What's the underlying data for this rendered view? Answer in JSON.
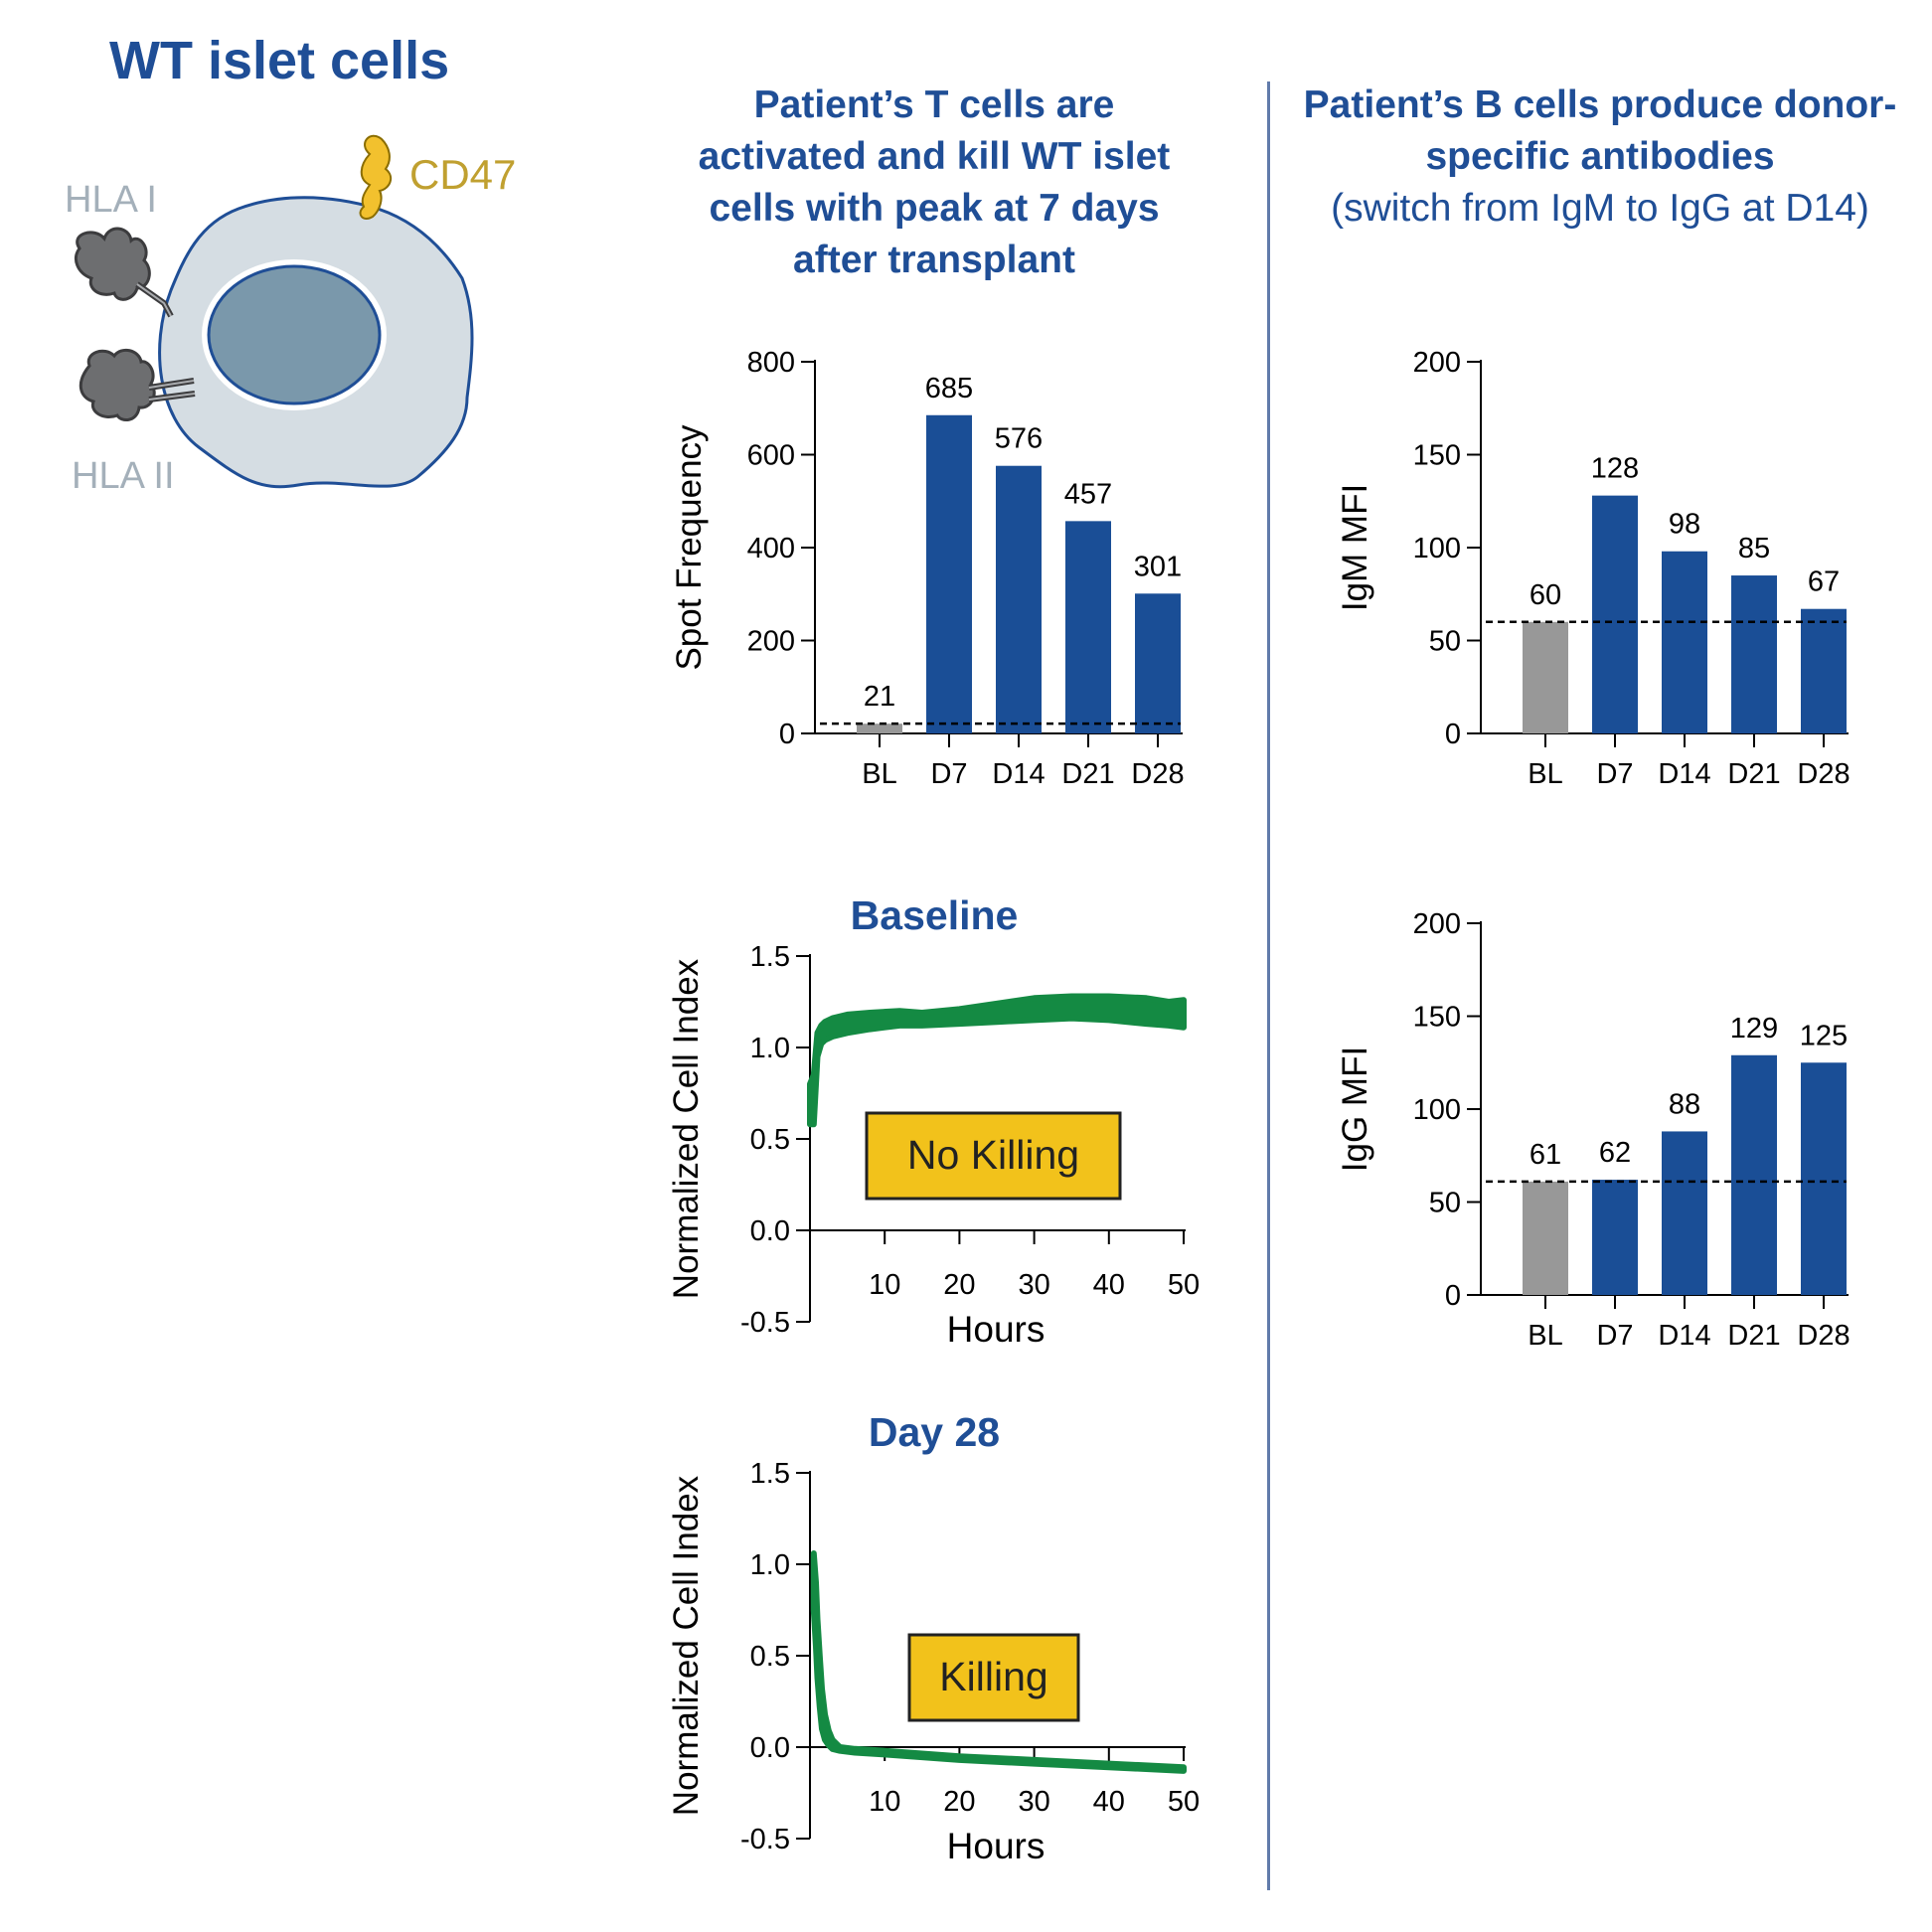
{
  "figure": {
    "title": "WT islet cells",
    "left_heading": "Patient’s T cells are activated and kill WT islet cells with peak at 7 days after transplant",
    "right_heading_bold": "Patient’s B cells produce donor-specific antibodies",
    "right_heading_normal": "(switch from IgM to IgG at D14)"
  },
  "cell_diagram": {
    "labels": {
      "hla1": "HLA I",
      "hla2": "HLA II",
      "cd47": "CD47"
    },
    "colors": {
      "cell": "#d5dde3",
      "nucleus": "#7a98ab",
      "outline": "#1f4e96",
      "hla": "#6d6e70",
      "cd47": "#f2c12e"
    }
  },
  "colors": {
    "blue_bar": "#1a4e96",
    "gray_bar": "#989898",
    "green_line": "#148a43",
    "badge": "#f2c21b"
  },
  "chart_data": [
    {
      "id": "elispot",
      "type": "bar",
      "categories": [
        "BL",
        "D7",
        "D14",
        "D21",
        "D28"
      ],
      "values": [
        21,
        685,
        576,
        457,
        301
      ],
      "value_labels": [
        "21",
        "685",
        "576",
        "457",
        "301"
      ],
      "bar_colors": [
        "gray",
        "blue",
        "blue",
        "blue",
        "blue"
      ],
      "ylabel": "Spot Frequency",
      "ylim": [
        0,
        800
      ],
      "yticks": [
        0,
        200,
        400,
        600,
        800
      ],
      "ytick_labels": [
        "0",
        "200",
        "400",
        "600",
        "800"
      ],
      "reference_line": 21
    },
    {
      "id": "igm",
      "type": "bar",
      "categories": [
        "BL",
        "D7",
        "D14",
        "D21",
        "D28"
      ],
      "values": [
        60,
        128,
        98,
        85,
        67
      ],
      "value_labels": [
        "60",
        "128",
        "98",
        "85",
        "67"
      ],
      "bar_colors": [
        "gray",
        "blue",
        "blue",
        "blue",
        "blue"
      ],
      "ylabel": "IgM MFI",
      "ylim": [
        0,
        200
      ],
      "yticks": [
        0,
        50,
        100,
        150,
        200
      ],
      "ytick_labels": [
        "0",
        "50",
        "100",
        "150",
        "200"
      ],
      "reference_line": 60
    },
    {
      "id": "igg",
      "type": "bar",
      "categories": [
        "BL",
        "D7",
        "D14",
        "D21",
        "D28"
      ],
      "values": [
        61,
        62,
        88,
        129,
        125
      ],
      "value_labels": [
        "61",
        "62",
        "88",
        "129",
        "125"
      ],
      "bar_colors": [
        "gray",
        "blue",
        "blue",
        "blue",
        "blue"
      ],
      "ylabel": "IgG MFI",
      "ylim": [
        0,
        200
      ],
      "yticks": [
        0,
        50,
        100,
        150,
        200
      ],
      "ytick_labels": [
        "0",
        "50",
        "100",
        "150",
        "200"
      ],
      "reference_line": 61
    },
    {
      "id": "baseline",
      "type": "line",
      "title": "Baseline",
      "annotation": "No Killing",
      "xlabel": "Hours",
      "ylabel": "Normalized Cell Index",
      "xlim": [
        0,
        50
      ],
      "ylim": [
        -0.5,
        1.5
      ],
      "xticks": [
        10,
        20,
        30,
        40,
        50
      ],
      "xtick_labels": [
        "10",
        "20",
        "30",
        "40",
        "50"
      ],
      "yticks": [
        -0.5,
        0.0,
        0.5,
        1.0,
        1.5
      ],
      "ytick_labels": [
        "-0.5",
        "0.0",
        "0.5",
        "1.0",
        "1.5"
      ],
      "series": [
        {
          "name": "Baseline",
          "x": [
            0,
            0.5,
            1,
            1.5,
            2,
            3,
            5,
            8,
            12,
            15,
            20,
            25,
            30,
            35,
            40,
            45,
            48,
            50
          ],
          "lo": [
            0.58,
            0.58,
            0.95,
            1.02,
            1.04,
            1.06,
            1.08,
            1.1,
            1.12,
            1.12,
            1.13,
            1.14,
            1.15,
            1.16,
            1.15,
            1.13,
            1.12,
            1.11
          ],
          "hi": [
            0.8,
            0.85,
            1.08,
            1.12,
            1.14,
            1.16,
            1.18,
            1.19,
            1.2,
            1.19,
            1.21,
            1.24,
            1.27,
            1.28,
            1.28,
            1.27,
            1.25,
            1.26
          ]
        }
      ]
    },
    {
      "id": "day28",
      "type": "line",
      "title": "Day 28",
      "annotation": "Killing",
      "xlabel": "Hours",
      "ylabel": "Normalized Cell Index",
      "xlim": [
        0,
        50
      ],
      "ylim": [
        -0.5,
        1.5
      ],
      "xticks": [
        10,
        20,
        30,
        40,
        50
      ],
      "xtick_labels": [
        "10",
        "20",
        "30",
        "40",
        "50"
      ],
      "yticks": [
        -0.5,
        0.0,
        0.5,
        1.0,
        1.5
      ],
      "ytick_labels": [
        "-0.5",
        "0.0",
        "0.5",
        "1.0",
        "1.5"
      ],
      "series": [
        {
          "name": "Day 28",
          "x": [
            0.5,
            0.8,
            1.0,
            1.3,
            1.6,
            2.0,
            2.5,
            3.0,
            4.0,
            6.0,
            10,
            20,
            30,
            40,
            50
          ],
          "lo": [
            0.75,
            0.55,
            0.38,
            0.22,
            0.1,
            0.04,
            0.01,
            -0.01,
            -0.02,
            -0.03,
            -0.04,
            -0.07,
            -0.09,
            -0.11,
            -0.13
          ],
          "hi": [
            1.06,
            0.9,
            0.7,
            0.5,
            0.32,
            0.18,
            0.09,
            0.04,
            0.0,
            -0.01,
            -0.02,
            -0.05,
            -0.07,
            -0.09,
            -0.11
          ]
        }
      ]
    }
  ]
}
